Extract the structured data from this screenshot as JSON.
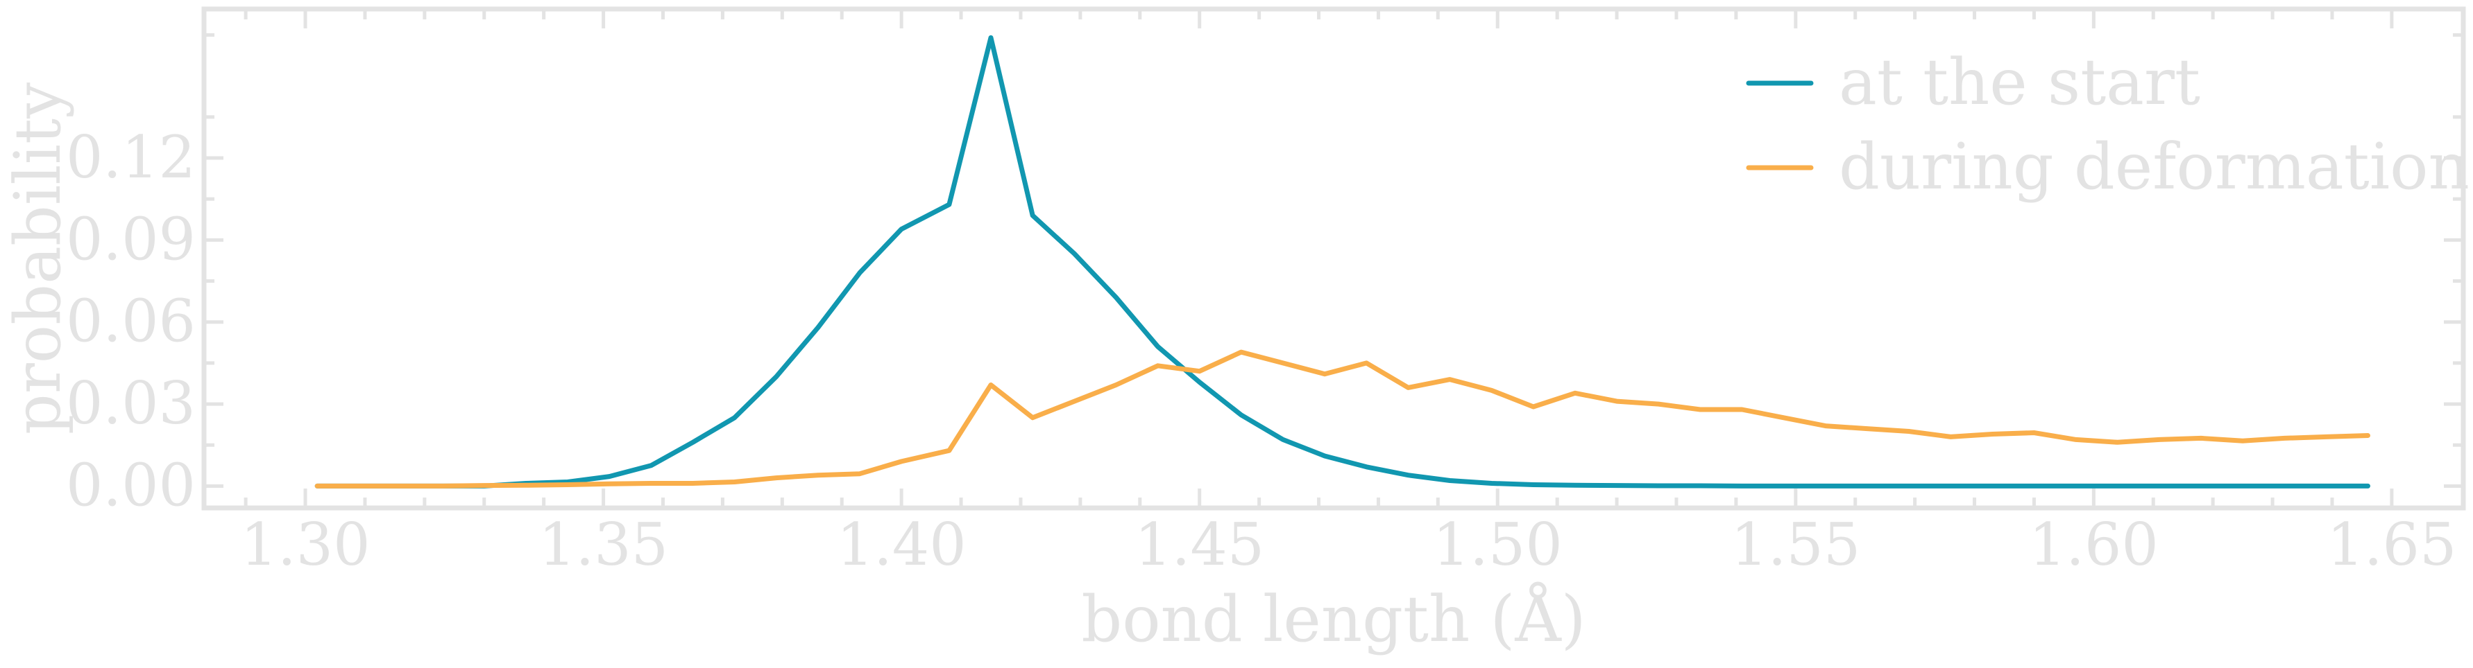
{
  "chart_data": {
    "type": "line",
    "title": "",
    "xlabel": "bond length (Å)",
    "ylabel": "probability",
    "xlim": [
      1.283,
      1.662
    ],
    "ylim": [
      -0.008,
      0.1745
    ],
    "x_ticks": [
      "1.30",
      "1.35",
      "1.40",
      "1.45",
      "1.50",
      "1.55",
      "1.60",
      "1.65"
    ],
    "y_ticks": [
      "0.00",
      "0.03",
      "0.06",
      "0.09",
      "0.12"
    ],
    "grid": false,
    "legend_position": "top-right",
    "series": [
      {
        "name": "at the start",
        "color": "#1197b0",
        "x": [
          1.302,
          1.309,
          1.316,
          1.323,
          1.33,
          1.337,
          1.344,
          1.351,
          1.358,
          1.365,
          1.372,
          1.379,
          1.386,
          1.393,
          1.4,
          1.408,
          1.415,
          1.422,
          1.429,
          1.436,
          1.443,
          1.45,
          1.457,
          1.464,
          1.471,
          1.478,
          1.485,
          1.492,
          1.499,
          1.506,
          1.513,
          1.52,
          1.527,
          1.534,
          1.541,
          1.548,
          1.555,
          1.562,
          1.569,
          1.576,
          1.583,
          1.59,
          1.597,
          1.604,
          1.611,
          1.618,
          1.625,
          1.632,
          1.639,
          1.646
        ],
        "values": [
          0.0,
          0.0,
          0.0,
          0.0,
          0.0,
          0.001,
          0.0015,
          0.0035,
          0.0075,
          0.016,
          0.025,
          0.04,
          0.058,
          0.078,
          0.094,
          0.103,
          0.164,
          0.099,
          0.085,
          0.069,
          0.051,
          0.038,
          0.026,
          0.017,
          0.011,
          0.007,
          0.004,
          0.002,
          0.001,
          0.0005,
          0.0003,
          0.0002,
          0.0001,
          0.0001,
          0.0,
          0.0,
          0.0,
          0.0,
          0.0,
          0.0,
          0.0,
          0.0,
          0.0,
          0.0,
          0.0,
          0.0,
          0.0,
          0.0,
          0.0,
          0.0
        ]
      },
      {
        "name": "during deformation",
        "color": "#f9ae4a",
        "x": [
          1.302,
          1.309,
          1.316,
          1.323,
          1.33,
          1.337,
          1.344,
          1.351,
          1.358,
          1.365,
          1.372,
          1.379,
          1.386,
          1.393,
          1.4,
          1.408,
          1.415,
          1.422,
          1.429,
          1.436,
          1.443,
          1.45,
          1.457,
          1.464,
          1.471,
          1.478,
          1.485,
          1.492,
          1.499,
          1.506,
          1.513,
          1.52,
          1.527,
          1.534,
          1.541,
          1.548,
          1.555,
          1.562,
          1.569,
          1.576,
          1.583,
          1.59,
          1.597,
          1.604,
          1.611,
          1.618,
          1.625,
          1.632,
          1.639,
          1.646
        ],
        "values": [
          0.0,
          0.0,
          0.0,
          0.0,
          0.0002,
          0.0003,
          0.0005,
          0.0008,
          0.001,
          0.001,
          0.0015,
          0.003,
          0.004,
          0.0045,
          0.009,
          0.013,
          0.037,
          0.025,
          0.031,
          0.037,
          0.044,
          0.042,
          0.049,
          0.045,
          0.041,
          0.045,
          0.036,
          0.039,
          0.035,
          0.029,
          0.034,
          0.031,
          0.03,
          0.028,
          0.028,
          0.025,
          0.022,
          0.021,
          0.02,
          0.018,
          0.019,
          0.0195,
          0.017,
          0.016,
          0.017,
          0.0175,
          0.0165,
          0.0175,
          0.018,
          0.0185
        ]
      }
    ]
  }
}
